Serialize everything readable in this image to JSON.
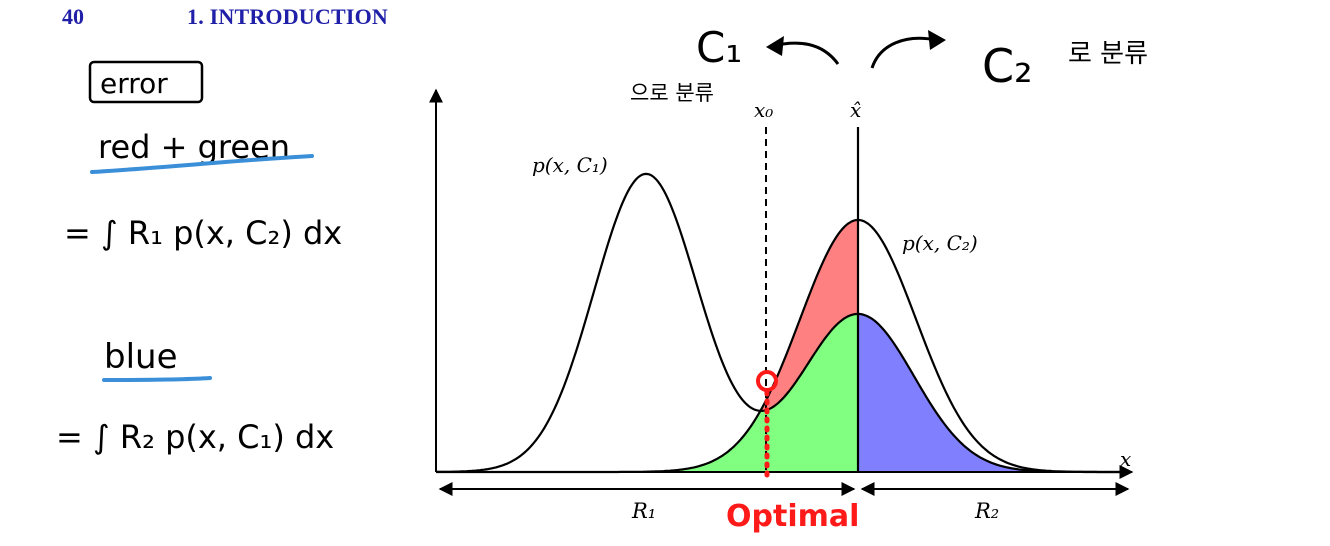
{
  "header": {
    "page_number": "40",
    "chapter_title": "1. INTRODUCTION"
  },
  "colors": {
    "header_blue": "#1f1fa8",
    "red_region": "#ff8080",
    "green_region": "#80ff80",
    "blue_region": "#8080ff",
    "annotation_red": "#ff1a1a",
    "underline_blue": "#3a8fd8",
    "ink": "#000000"
  },
  "figure": {
    "curve_label_1": "p(x, C₁)",
    "curve_label_2": "p(x, C₂)",
    "x0_label": "x₀",
    "xhat_label": "x̂",
    "x_axis_label": "x",
    "region_1_label": "R₁",
    "region_2_label": "R₂"
  },
  "annotations": {
    "c1_text": "C₁",
    "c1_korean": "으로 분류",
    "c2_text": "C₂",
    "c2_korean": "로 분류",
    "error_label": "error",
    "red_green_label": "red + green",
    "integral_1": "= ∫ R₁ p(x, C₂) dx",
    "blue_label": "blue",
    "integral_2": "= ∫ R₂ p(x, C₁) dx",
    "optimal_label": "Optimal"
  }
}
